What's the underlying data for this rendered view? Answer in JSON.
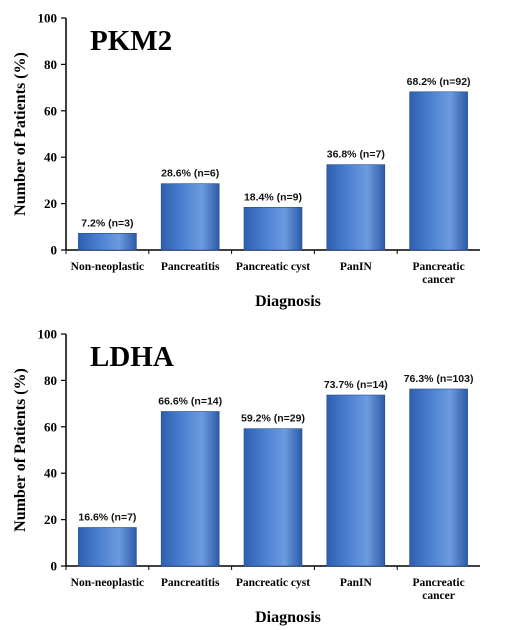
{
  "chart_data": [
    {
      "type": "bar",
      "title": "PKM2",
      "xlabel": "Diagnosis",
      "ylabel": "Number of Patients (%)",
      "ylim": [
        0,
        100
      ],
      "yticks": [
        "0",
        "20",
        "40",
        "60",
        "80",
        "100"
      ],
      "categories": [
        [
          "Non-neoplastic"
        ],
        [
          "Pancreatitis"
        ],
        [
          "Pancreatic cyst"
        ],
        [
          "PanIN"
        ],
        [
          "Pancreatic",
          "cancer"
        ]
      ],
      "values": [
        7.2,
        28.6,
        18.4,
        36.8,
        68.2
      ],
      "data_labels": [
        "7.2% (n=3)",
        "28.6% (n=6)",
        "18.4% (n=9)",
        "36.8% (n=7)",
        "68.2% (n=92)"
      ],
      "bar_color": "#4a7fd0"
    },
    {
      "type": "bar",
      "title": "LDHA",
      "xlabel": "Diagnosis",
      "ylabel": "Number of Patients (%)",
      "ylim": [
        0,
        100
      ],
      "yticks": [
        "0",
        "20",
        "40",
        "60",
        "80",
        "100"
      ],
      "categories": [
        [
          "Non-neoplastic"
        ],
        [
          "Pancreatitis"
        ],
        [
          "Pancreatic cyst"
        ],
        [
          "PanIN"
        ],
        [
          "Pancreatic",
          "cancer"
        ]
      ],
      "values": [
        16.6,
        66.6,
        59.2,
        73.7,
        76.3
      ],
      "data_labels": [
        "16.6% (n=7)",
        "66.6% (n=14)",
        "59.2% (n=29)",
        "73.7% (n=14)",
        "76.3% (n=103)"
      ],
      "bar_color": "#4a7fd0"
    }
  ]
}
